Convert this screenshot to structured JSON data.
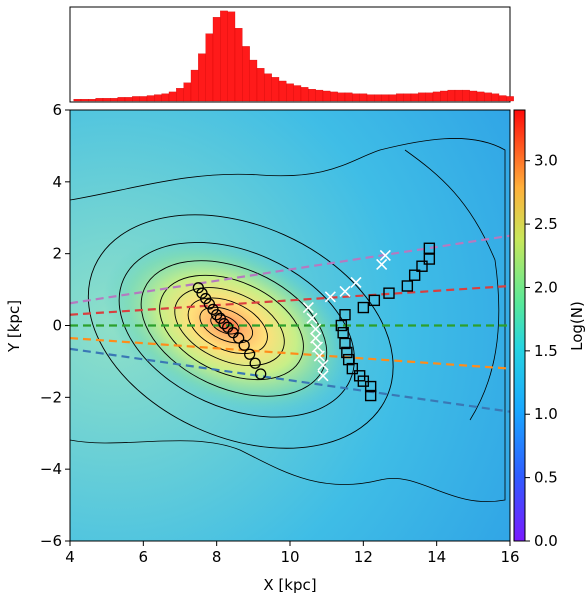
{
  "chart_data": [
    {
      "type": "bar",
      "panel": "top histogram",
      "title": "",
      "xlabel": "",
      "ylabel": "",
      "xlim": [
        4,
        16
      ],
      "ylim": [
        0,
        1
      ],
      "color": "#ff1a1a",
      "bin_start": 4.2,
      "bin_width": 0.2,
      "values": [
        0.02,
        0.02,
        0.02,
        0.03,
        0.03,
        0.03,
        0.04,
        0.04,
        0.05,
        0.05,
        0.06,
        0.07,
        0.08,
        0.1,
        0.14,
        0.2,
        0.34,
        0.52,
        0.74,
        0.92,
        0.99,
        0.98,
        0.8,
        0.6,
        0.45,
        0.36,
        0.3,
        0.26,
        0.22,
        0.19,
        0.17,
        0.15,
        0.13,
        0.12,
        0.11,
        0.1,
        0.09,
        0.09,
        0.08,
        0.08,
        0.07,
        0.07,
        0.07,
        0.07,
        0.08,
        0.08,
        0.08,
        0.09,
        0.09,
        0.1,
        0.11,
        0.12,
        0.12,
        0.12,
        0.11,
        0.1,
        0.09,
        0.08,
        0.06,
        0.05
      ]
    },
    {
      "type": "heatmap",
      "panel": "density map",
      "xlabel": "X [kpc]",
      "ylabel": "Y [kpc]",
      "xlim": [
        4,
        16
      ],
      "ylim": [
        -6,
        6
      ],
      "xticks": [
        "4",
        "6",
        "8",
        "10",
        "12",
        "14",
        "16"
      ],
      "yticks": [
        "−6",
        "−4",
        "−2",
        "0",
        "2",
        "4",
        "6"
      ],
      "density_center": [
        8.2,
        0.1
      ],
      "contours": "black",
      "series": [
        {
          "marker": "circle",
          "points": [
            [
              7.5,
              1.05
            ],
            [
              7.6,
              0.9
            ],
            [
              7.7,
              0.75
            ],
            [
              7.8,
              0.6
            ],
            [
              7.9,
              0.45
            ],
            [
              8.0,
              0.3
            ],
            [
              8.1,
              0.2
            ],
            [
              8.2,
              0.05
            ],
            [
              8.3,
              -0.05
            ],
            [
              8.45,
              -0.2
            ],
            [
              8.6,
              -0.35
            ],
            [
              8.75,
              -0.55
            ],
            [
              8.9,
              -0.8
            ],
            [
              9.05,
              -1.05
            ],
            [
              9.2,
              -1.35
            ]
          ]
        },
        {
          "marker": "x",
          "color": "#ffffff",
          "points": [
            [
              10.5,
              0.5
            ],
            [
              10.6,
              0.2
            ],
            [
              10.7,
              -0.1
            ],
            [
              10.7,
              -0.35
            ],
            [
              10.75,
              -0.6
            ],
            [
              10.8,
              -0.85
            ],
            [
              10.9,
              -1.1
            ],
            [
              10.9,
              -1.4
            ],
            [
              11.1,
              0.8
            ],
            [
              11.5,
              0.95
            ],
            [
              11.8,
              1.2
            ],
            [
              12.5,
              1.7
            ],
            [
              12.6,
              1.95
            ]
          ]
        },
        {
          "marker": "square",
          "points": [
            [
              11.4,
              0
            ],
            [
              11.45,
              -0.2
            ],
            [
              11.5,
              -0.5
            ],
            [
              11.55,
              -0.75
            ],
            [
              11.6,
              -0.95
            ],
            [
              11.7,
              -1.2
            ],
            [
              11.9,
              -1.4
            ],
            [
              12.0,
              -1.55
            ],
            [
              12.2,
              -1.7
            ],
            [
              12.2,
              -1.95
            ],
            [
              11.5,
              0.3
            ],
            [
              12.0,
              0.5
            ],
            [
              12.3,
              0.7
            ],
            [
              12.7,
              0.9
            ],
            [
              13.2,
              1.1
            ],
            [
              13.4,
              1.4
            ],
            [
              13.6,
              1.65
            ],
            [
              13.8,
              1.85
            ],
            [
              13.8,
              2.15
            ]
          ]
        }
      ],
      "lines": [
        {
          "color": "#b57ac0",
          "from": [
            4,
            0.62
          ],
          "to": [
            16,
            2.5
          ]
        },
        {
          "color": "#d93f3f",
          "from": [
            4,
            0.3
          ],
          "to": [
            16,
            1.1
          ]
        },
        {
          "color": "#2ca02c",
          "from": [
            4,
            0
          ],
          "to": [
            16,
            0
          ]
        },
        {
          "color": "#ff8c1a",
          "from": [
            4,
            -0.35
          ],
          "to": [
            16,
            -1.2
          ]
        },
        {
          "color": "#3a78b5",
          "from": [
            4,
            -0.65
          ],
          "to": [
            16,
            -2.4
          ]
        }
      ]
    },
    {
      "type": "colorbar",
      "label": "Log(N)",
      "range": [
        0,
        3.4
      ],
      "ticks": [
        "0.0",
        "0.5",
        "1.0",
        "1.5",
        "2.0",
        "2.5",
        "3.0"
      ]
    }
  ]
}
